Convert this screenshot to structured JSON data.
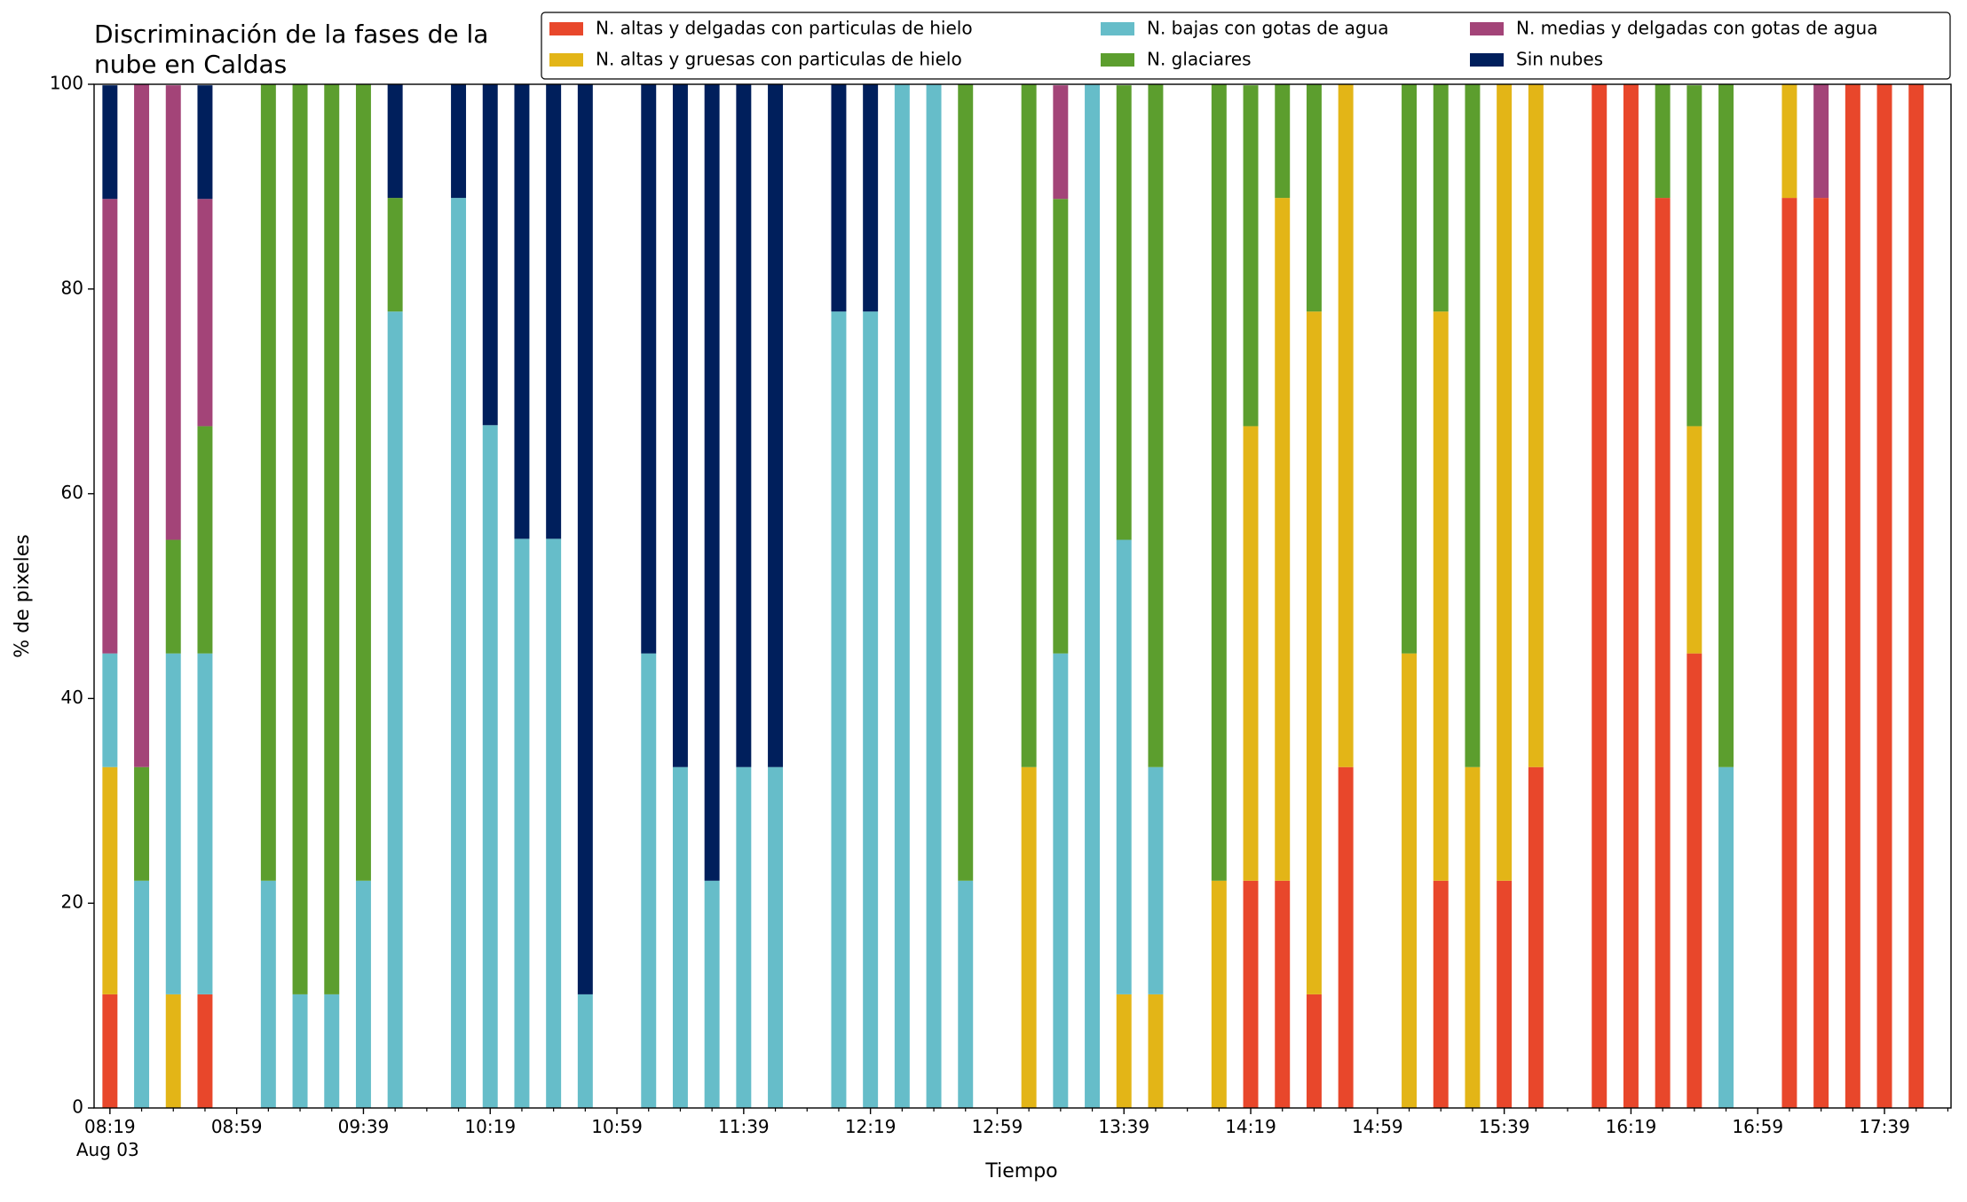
{
  "chart_data": {
    "type": "stacked_bar",
    "title": "Discriminación de la fases de la\nnube en Caldas",
    "xlabel": "Tiempo",
    "ylabel": "% de pixeles",
    "xtick_date": "Aug 03",
    "x": [
      "08:19",
      "08:29",
      "08:39",
      "08:49",
      "09:09",
      "09:19",
      "09:29",
      "09:39",
      "09:49",
      "10:09",
      "10:19",
      "10:29",
      "10:39",
      "10:49",
      "11:09",
      "11:19",
      "11:29",
      "11:39",
      "11:49",
      "12:09",
      "12:19",
      "12:29",
      "12:39",
      "12:49",
      "13:09",
      "13:19",
      "13:29",
      "13:39",
      "13:49",
      "14:09",
      "14:19",
      "14:29",
      "14:39",
      "14:49",
      "15:09",
      "15:19",
      "15:29",
      "15:39",
      "15:49",
      "16:09",
      "16:19",
      "16:29",
      "16:39",
      "16:49",
      "17:09",
      "17:19",
      "17:29",
      "17:39",
      "17:49"
    ],
    "series": [
      {
        "name": "N. altas y delgadas con particulas de hielo",
        "color": "#e8472b",
        "values": [
          11.1,
          0,
          0,
          11.1,
          0,
          0,
          0,
          0,
          0,
          0,
          0,
          0,
          0,
          0,
          0,
          0,
          0,
          0,
          0,
          0,
          0,
          0,
          0,
          0,
          0,
          0,
          0,
          0,
          0,
          0,
          22.2,
          22.2,
          11.1,
          33.3,
          0,
          22.2,
          0,
          22.2,
          33.3,
          100,
          100,
          88.9,
          44.4,
          0,
          88.9,
          88.9,
          100,
          100,
          100
        ]
      },
      {
        "name": "N. altas y gruesas con particulas de hielo",
        "color": "#e3b517",
        "values": [
          22.2,
          0,
          11.1,
          0,
          0,
          0,
          0,
          0,
          0,
          0,
          0,
          0,
          0,
          0,
          0,
          0,
          0,
          0,
          0,
          0,
          0,
          0,
          0,
          0,
          33.3,
          0,
          0,
          11.1,
          11.1,
          22.2,
          44.4,
          66.7,
          66.7,
          66.7,
          44.4,
          55.6,
          33.3,
          77.8,
          66.7,
          0,
          0,
          0,
          22.2,
          0,
          11.1,
          0,
          0,
          0,
          0
        ]
      },
      {
        "name": "N. bajas con gotas de agua",
        "color": "#66bdc9",
        "values": [
          11.1,
          22.2,
          33.3,
          33.3,
          22.2,
          11.1,
          11.1,
          22.2,
          77.8,
          88.9,
          66.7,
          55.6,
          55.6,
          11.1,
          44.4,
          33.3,
          22.2,
          33.3,
          33.3,
          77.8,
          77.8,
          100,
          100,
          22.2,
          0,
          44.4,
          100,
          44.4,
          22.2,
          0,
          0,
          0,
          0,
          0,
          0,
          0,
          0,
          0,
          0,
          0,
          0,
          0,
          0,
          33.3,
          0,
          0,
          0,
          0,
          0
        ]
      },
      {
        "name": "N. glaciares",
        "color": "#5c9e2e",
        "values": [
          0,
          11.1,
          11.1,
          22.2,
          77.8,
          88.9,
          88.9,
          77.8,
          11.1,
          0,
          0,
          0,
          0,
          0,
          0,
          0,
          0,
          0,
          0,
          0,
          0,
          0,
          0,
          77.8,
          66.7,
          44.4,
          0,
          44.4,
          66.7,
          77.8,
          33.3,
          11.1,
          22.2,
          0,
          55.6,
          22.2,
          66.7,
          0,
          0,
          0,
          0,
          11.1,
          33.3,
          66.7,
          0,
          0,
          0,
          0,
          0
        ]
      },
      {
        "name": "N. medias y delgadas con gotas de agua",
        "color": "#a34478",
        "values": [
          44.4,
          66.7,
          44.4,
          22.2,
          0,
          0,
          0,
          0,
          0,
          0,
          0,
          0,
          0,
          0,
          0,
          0,
          0,
          0,
          0,
          0,
          0,
          0,
          0,
          0,
          0,
          11.1,
          0,
          0,
          0,
          0,
          0,
          0,
          0,
          0,
          0,
          0,
          0,
          0,
          0,
          0,
          0,
          0,
          0,
          0,
          0,
          11.1,
          0,
          0,
          0
        ]
      },
      {
        "name": "Sin nubes",
        "color": "#001f5c",
        "values": [
          11.1,
          0,
          0,
          11.1,
          0,
          0,
          0,
          0,
          11.1,
          11.1,
          33.3,
          44.4,
          44.4,
          88.9,
          55.6,
          66.7,
          77.8,
          66.7,
          66.7,
          22.2,
          22.2,
          0,
          0,
          0,
          0,
          0,
          0,
          0,
          0,
          0,
          0,
          0,
          0,
          0,
          0,
          0,
          0,
          0,
          0,
          0,
          0,
          0,
          0,
          0,
          0,
          0,
          0,
          0,
          0
        ]
      }
    ],
    "xlim": [
      "08:14",
      "18:00"
    ],
    "xticks": [
      "08:19",
      "08:59",
      "09:39",
      "10:19",
      "10:59",
      "11:39",
      "12:19",
      "12:59",
      "13:39",
      "14:19",
      "14:59",
      "15:39",
      "16:19",
      "16:59",
      "17:39"
    ],
    "ylim": [
      0,
      100
    ],
    "yticks": [
      0,
      20,
      40,
      60,
      80,
      100
    ],
    "legend": "top-right",
    "grid": false
  }
}
